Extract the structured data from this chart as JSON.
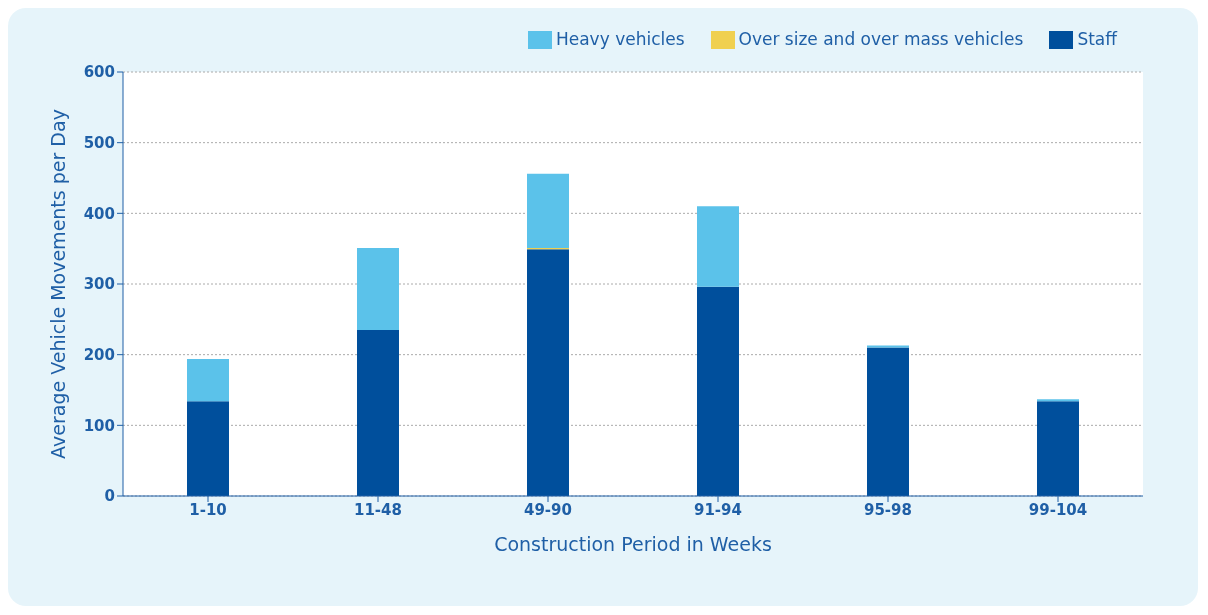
{
  "chart_data": {
    "type": "bar",
    "xlabel": "Construction Period in Weeks",
    "ylabel": "Average Vehicle Movements per Day",
    "categories": [
      "1-10",
      "11-48",
      "49-90",
      "91-94",
      "95-98",
      "99-104"
    ],
    "series": [
      {
        "name": "Staff",
        "color": "#004f9c",
        "values": [
          134,
          235,
          349,
          296,
          210,
          134
        ]
      },
      {
        "name": "Over size and over mass vehicles",
        "color": "#f0d050",
        "values": [
          0,
          0,
          2,
          0,
          0,
          0
        ]
      },
      {
        "name": "Heavy vehicles",
        "color": "#5bc2ea",
        "values": [
          60,
          116,
          105,
          114,
          3,
          3
        ]
      }
    ],
    "stacked": true,
    "ylim": [
      0,
      600
    ],
    "yticks": [
      0,
      100,
      200,
      300,
      400,
      500,
      600
    ],
    "grid": "y",
    "legend": "top right"
  }
}
